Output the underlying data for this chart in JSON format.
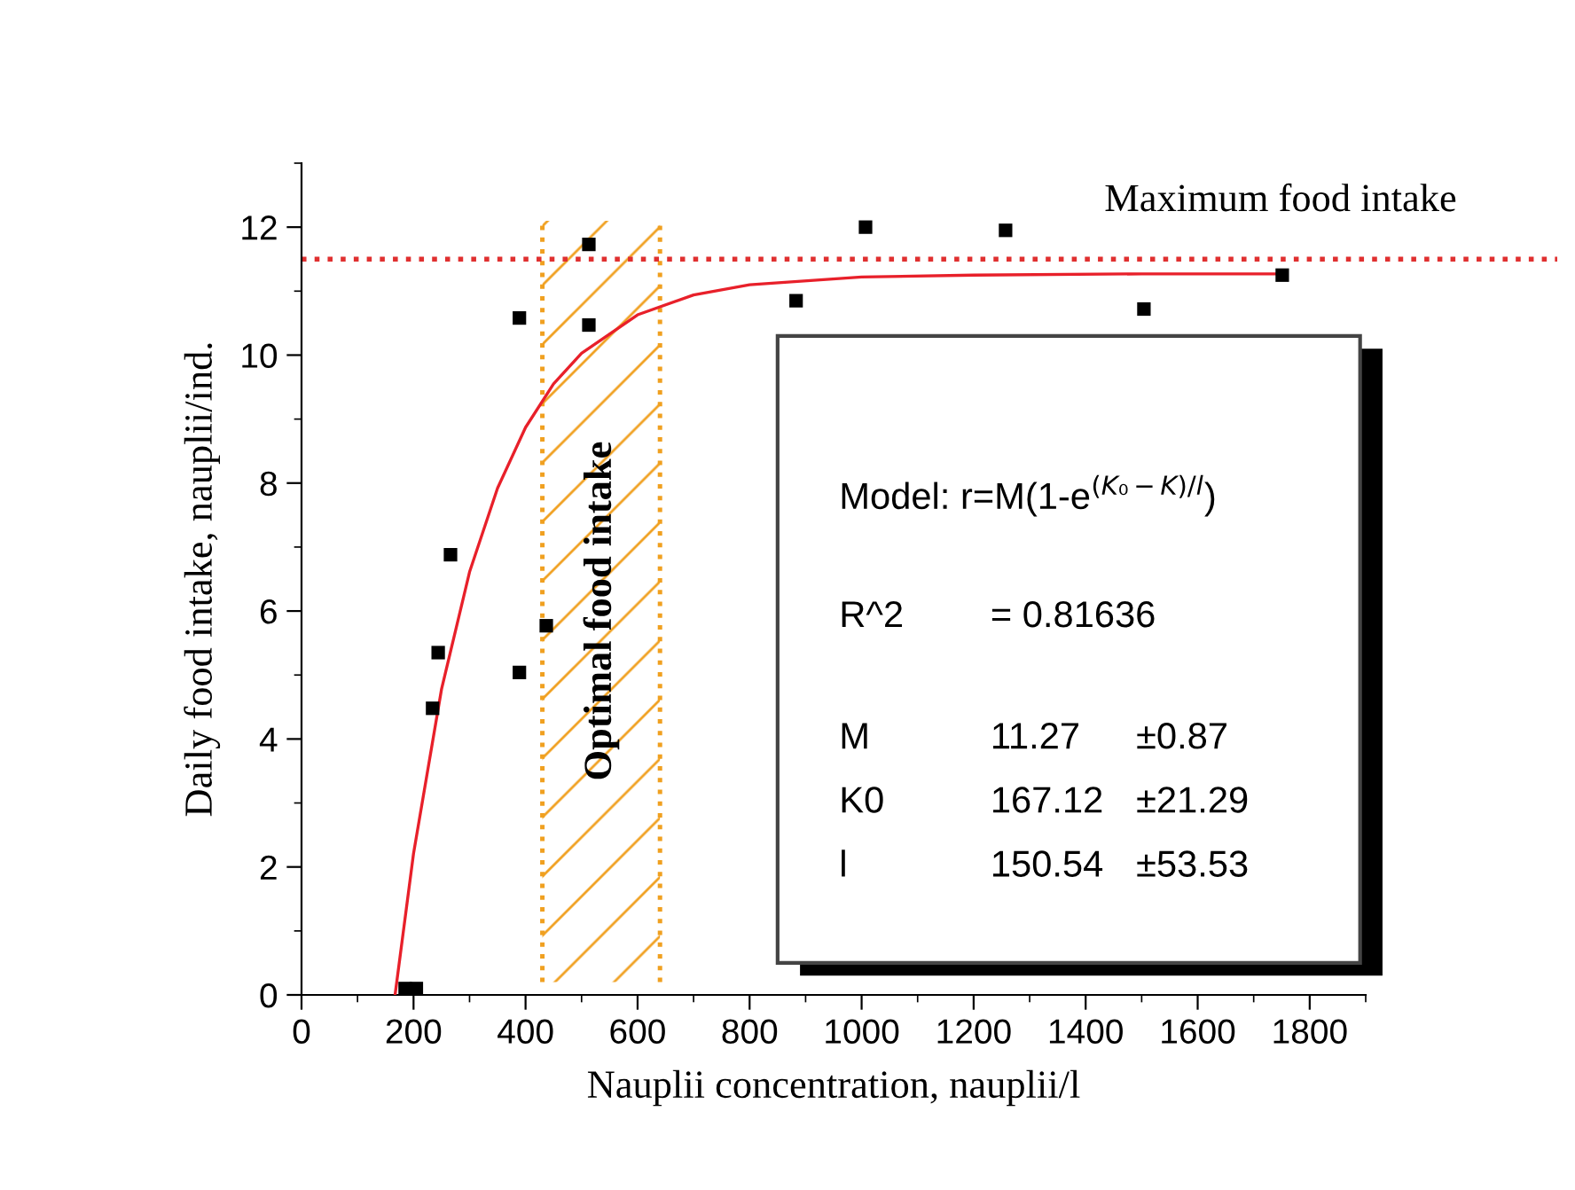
{
  "chart_data": {
    "type": "scatter",
    "xlabel": "Nauplii concentration, nauplii/l",
    "ylabel": "Daily food intake, nauplii/ind.",
    "xlim": [
      0,
      1900
    ],
    "xticks": [
      0,
      200,
      400,
      600,
      800,
      1000,
      1200,
      1400,
      1600,
      1800
    ],
    "ylim": [
      0,
      13
    ],
    "yticks": [
      0,
      2,
      4,
      6,
      8,
      10,
      12
    ],
    "series": [
      {
        "marker": "square",
        "color": "#000000",
        "x": [
          185,
          205,
          234,
          244,
          266,
          389,
          389,
          437,
          513,
          513,
          883,
          1007,
          1257,
          1504,
          1751
        ],
        "values": [
          0.1,
          0.1,
          4.48,
          5.35,
          6.88,
          10.58,
          5.04,
          5.77,
          11.73,
          10.47,
          10.85,
          12.0,
          11.95,
          10.72,
          11.25
        ]
      },
      {
        "type": "line",
        "marker": "none",
        "color": "#e8202a",
        "x": [
          167,
          200,
          250,
          300,
          350,
          400,
          450,
          500,
          600,
          700,
          800,
          1000,
          1200,
          1500,
          1750
        ],
        "values": [
          0,
          2.21,
          4.78,
          6.61,
          7.92,
          8.87,
          9.55,
          10.03,
          10.63,
          10.94,
          11.1,
          11.22,
          11.25,
          11.27,
          11.27
        ]
      }
    ],
    "ref_lines": [
      {
        "axis": "y",
        "value": 11.5,
        "label": "Maximum food intake",
        "color": "#e03030",
        "line_style": "dotted"
      },
      {
        "axis": "x",
        "value": 430,
        "color": "#f0a020",
        "line_style": "dotted"
      },
      {
        "axis": "x",
        "value": 640,
        "color": "#f0a020",
        "line_style": "dotted"
      }
    ],
    "bands": [
      {
        "axis": "x",
        "from": 430,
        "to": 640,
        "label": "Optimal food intake",
        "color": "#f0a020"
      }
    ],
    "annotations": [
      "Model: r=M(1-e$^{(K₀−K)/l}$)",
      "R^2",
      "= 0.81636",
      "M",
      "11.27",
      "±0.87",
      "K0",
      "167.12",
      "±21.29",
      "l",
      "150.54",
      "±53.53"
    ]
  }
}
